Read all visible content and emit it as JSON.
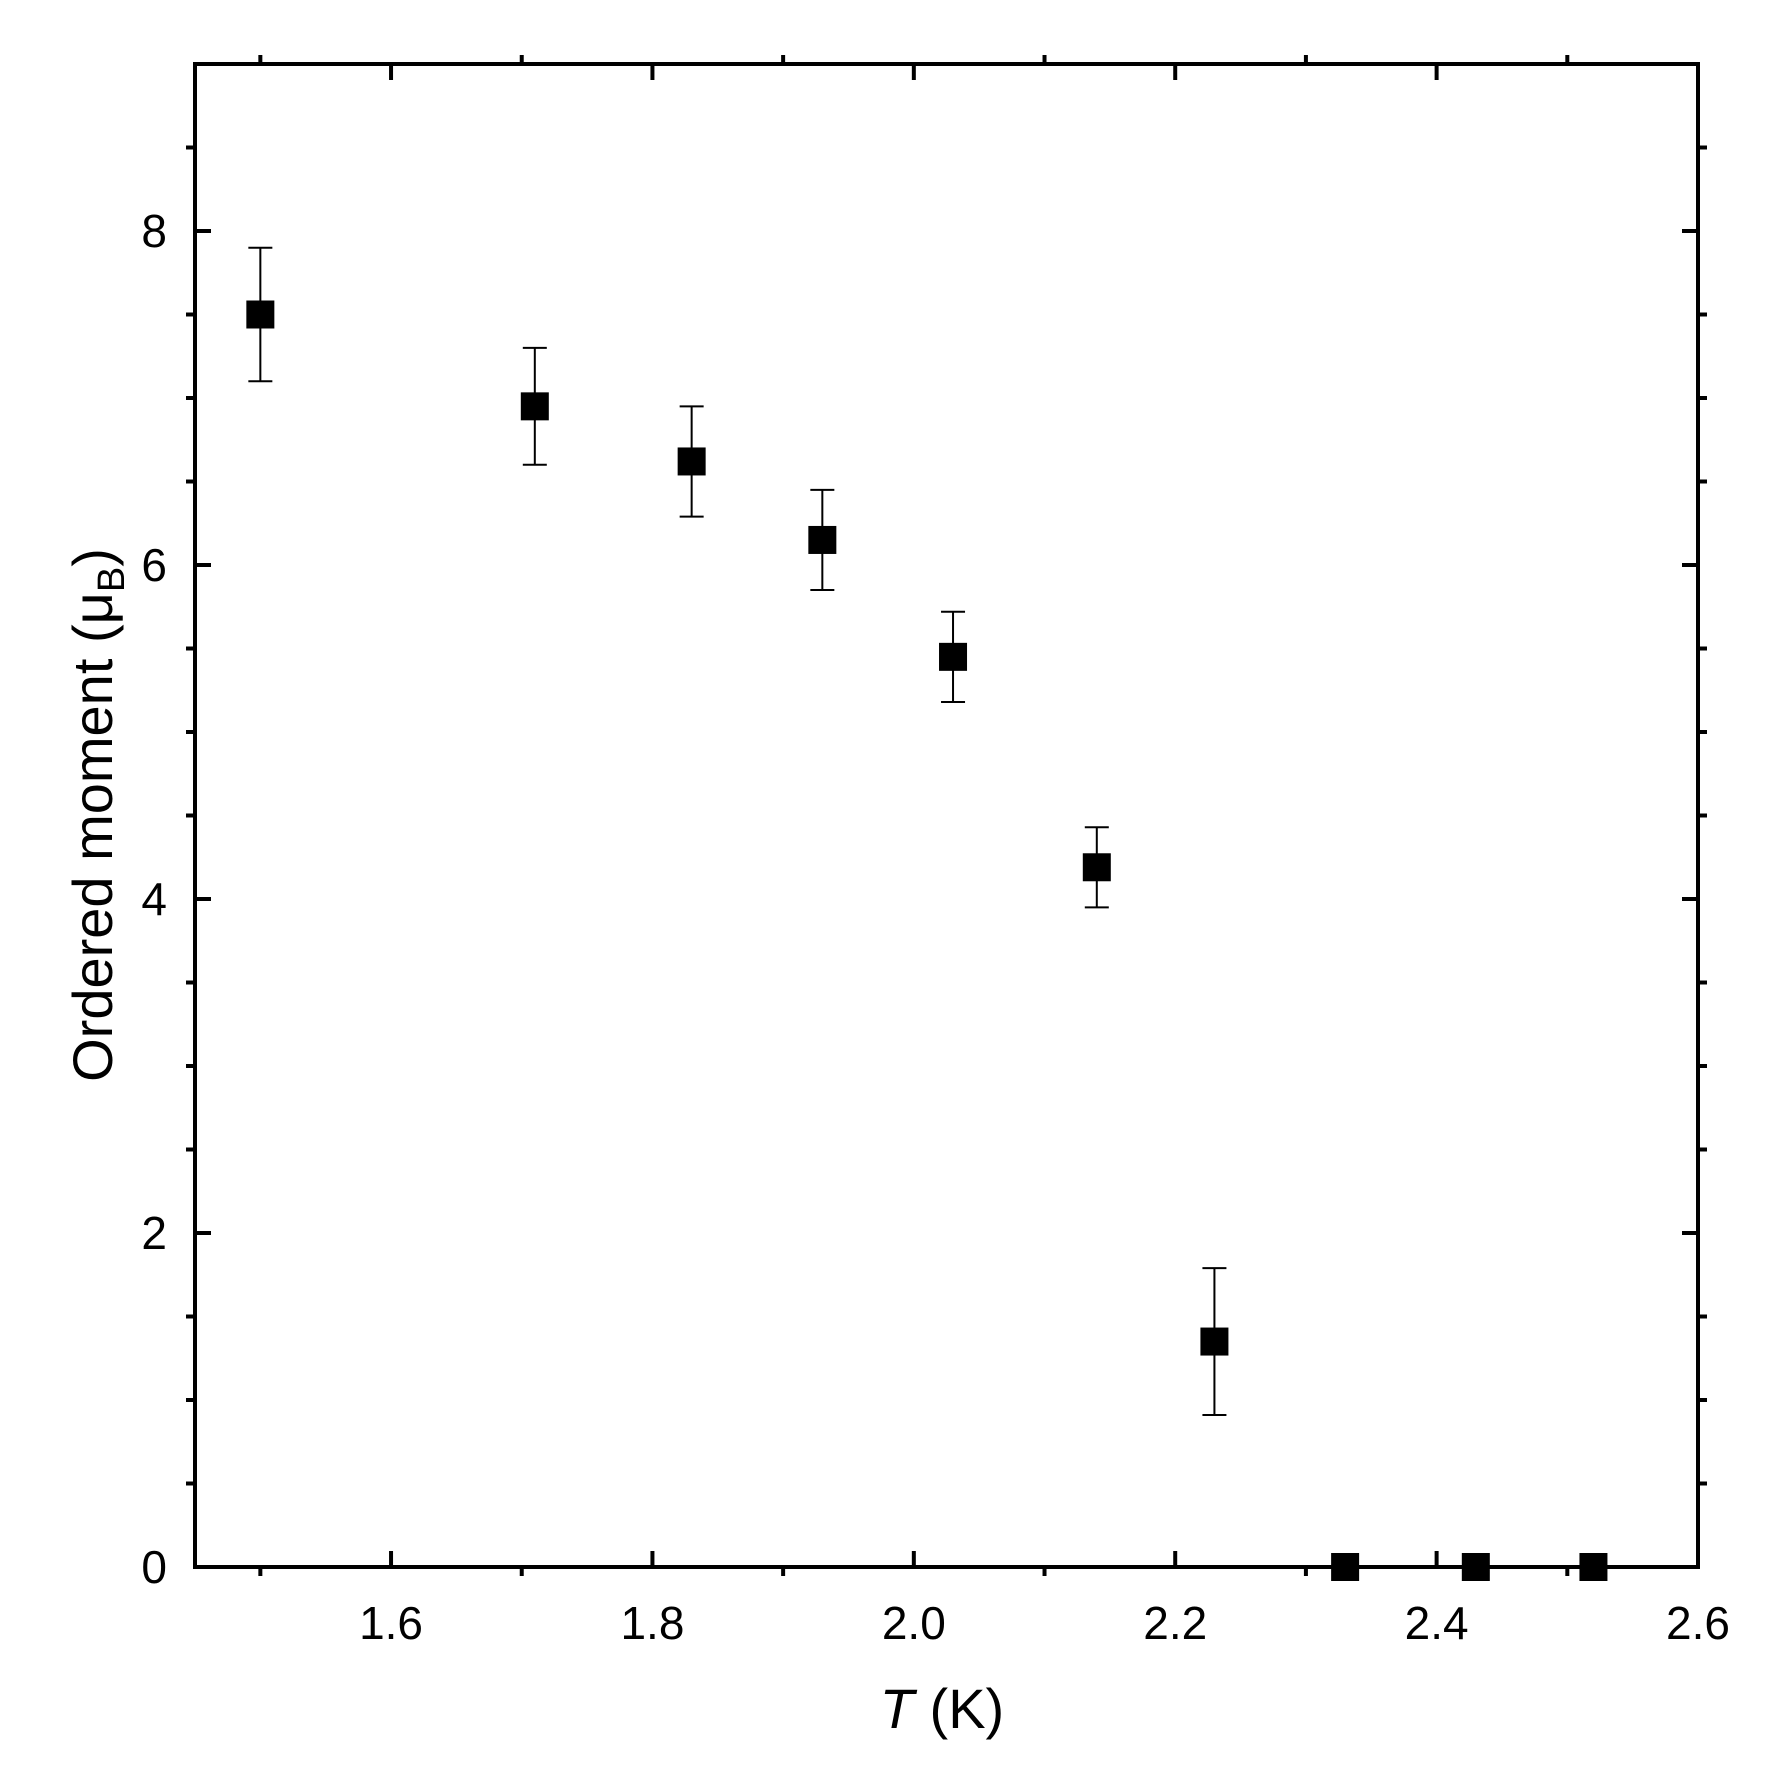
{
  "chart_data": {
    "type": "scatter",
    "title": "",
    "xlabel_italic": "T",
    "xlabel_rest": " (K)",
    "ylabel_main": "Ordered moment (μ",
    "ylabel_sub": "B",
    "ylabel_close": ")",
    "xlim": [
      1.45,
      2.6
    ],
    "ylim": [
      0,
      9
    ],
    "x_major_ticks": [
      1.6,
      1.8,
      2.0,
      2.2,
      2.4,
      2.6
    ],
    "x_tick_labels": [
      "1.6",
      "1.8",
      "2.0",
      "2.2",
      "2.4",
      "2.6"
    ],
    "x_minor_ticks": [
      1.5,
      1.7,
      1.9,
      2.1,
      2.3,
      2.5
    ],
    "y_major_ticks": [
      0,
      2,
      4,
      6,
      8
    ],
    "y_tick_labels": [
      "0",
      "2",
      "4",
      "6",
      "8"
    ],
    "y_minor_ticks": [
      0.5,
      1,
      1.5,
      2.5,
      3,
      3.5,
      4.5,
      5,
      5.5,
      6.5,
      7,
      7.5,
      8.5
    ],
    "grid": false,
    "marker": "square",
    "color": "#000000",
    "series": [
      {
        "points": [
          {
            "x": 1.5,
            "y": 7.5,
            "err": 0.4
          },
          {
            "x": 1.71,
            "y": 6.95,
            "err": 0.35
          },
          {
            "x": 1.83,
            "y": 6.62,
            "err": 0.33
          },
          {
            "x": 1.93,
            "y": 6.15,
            "err": 0.3
          },
          {
            "x": 2.03,
            "y": 5.45,
            "err": 0.27
          },
          {
            "x": 2.14,
            "y": 4.19,
            "err": 0.24
          },
          {
            "x": 2.23,
            "y": 1.35,
            "err": 0.44
          },
          {
            "x": 2.33,
            "y": 0,
            "err": 0
          },
          {
            "x": 2.43,
            "y": 0,
            "err": 0
          },
          {
            "x": 2.52,
            "y": 0,
            "err": 0
          }
        ]
      }
    ]
  }
}
